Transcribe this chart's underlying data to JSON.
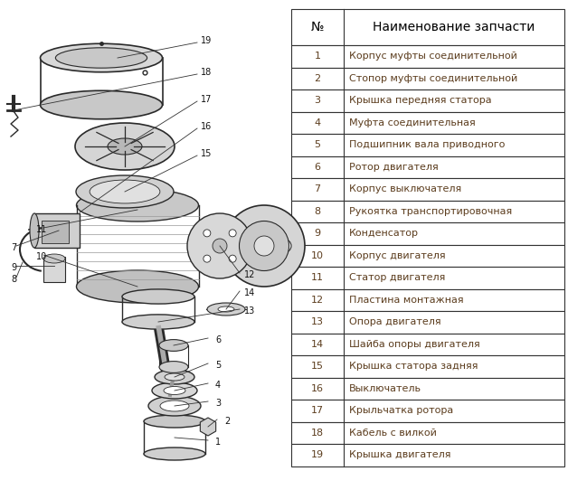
{
  "table_header_no": "№",
  "table_header_name": "Наименование запчасти",
  "rows": [
    [
      1,
      "Корпус муфты соединительной"
    ],
    [
      2,
      "Стопор муфты соединительной"
    ],
    [
      3,
      "Крышка передняя статора"
    ],
    [
      4,
      "Муфта соединительная"
    ],
    [
      5,
      "Подшипник вала приводного"
    ],
    [
      6,
      "Ротор двигателя"
    ],
    [
      7,
      "Корпус выключателя"
    ],
    [
      8,
      "Рукоятка транспортировочная"
    ],
    [
      9,
      "Конденсатор"
    ],
    [
      10,
      "Корпус двигателя"
    ],
    [
      11,
      "Статор двигателя"
    ],
    [
      12,
      "Пластина монтажная"
    ],
    [
      13,
      "Опора двигателя"
    ],
    [
      14,
      "Шайба опоры двигателя"
    ],
    [
      15,
      "Крышка статора задняя"
    ],
    [
      16,
      "Выключатель"
    ],
    [
      17,
      "Крыльчатка ротора"
    ],
    [
      18,
      "Кабель с вилкой"
    ],
    [
      19,
      "Крышка двигателя"
    ]
  ],
  "bg_color": "#ffffff",
  "cell_text_color": "#5c3d1e",
  "header_text_color": "#000000",
  "border_color": "#333333",
  "line_color": "#333333",
  "part_fill": "#e8e8e8",
  "part_edge": "#333333"
}
